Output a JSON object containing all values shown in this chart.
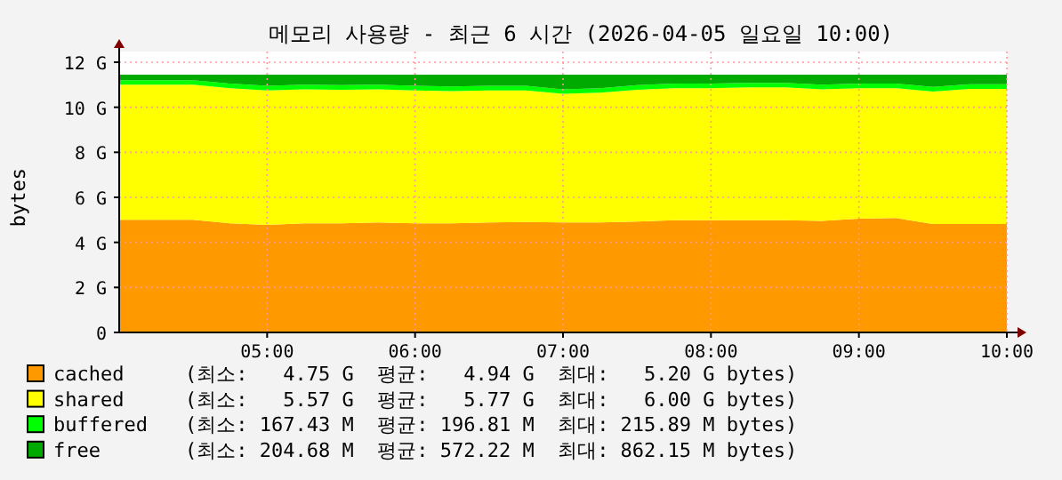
{
  "chart_data": {
    "type": "area",
    "stacked": true,
    "title": "메모리 사용량 - 최근 6 시간 (2026-04-05 일요일 10:00)",
    "ylabel": "bytes",
    "x": [
      4.0,
      4.25,
      4.5,
      4.75,
      5.0,
      5.25,
      5.5,
      5.75,
      6.0,
      6.25,
      6.5,
      6.75,
      7.0,
      7.25,
      7.5,
      7.75,
      8.0,
      8.25,
      8.5,
      8.75,
      9.0,
      9.25,
      9.5,
      9.75,
      10.0
    ],
    "xlim": [
      4,
      10
    ],
    "xticks": [
      {
        "value": 5,
        "label": "05:00"
      },
      {
        "value": 6,
        "label": "06:00"
      },
      {
        "value": 7,
        "label": "07:00"
      },
      {
        "value": 8,
        "label": "08:00"
      },
      {
        "value": 9,
        "label": "09:00"
      },
      {
        "value": 10,
        "label": "10:00"
      }
    ],
    "ylim": [
      0,
      12
    ],
    "yticks": [
      0,
      {
        "value": 2,
        "label": "2 G"
      },
      {
        "value": 4,
        "label": "4 G"
      },
      {
        "value": 6,
        "label": "6 G"
      },
      {
        "value": 8,
        "label": "8 G"
      },
      {
        "value": 10,
        "label": "10 G"
      },
      {
        "value": 12,
        "label": "12 G"
      }
    ],
    "grid": true,
    "legend": "bottom",
    "series": [
      {
        "name": "cached",
        "color": "#ff9900",
        "values": [
          5.0,
          5.0,
          5.0,
          4.85,
          4.78,
          4.85,
          4.85,
          4.88,
          4.85,
          4.85,
          4.88,
          4.9,
          4.88,
          4.88,
          4.92,
          4.98,
          4.98,
          4.98,
          4.98,
          4.95,
          5.05,
          5.08,
          4.82,
          4.82,
          4.82
        ]
      },
      {
        "name": "shared",
        "color": "#ffff00",
        "values": [
          6.0,
          6.0,
          6.0,
          6.0,
          5.97,
          5.95,
          5.93,
          5.92,
          5.9,
          5.87,
          5.87,
          5.85,
          5.72,
          5.77,
          5.86,
          5.87,
          5.87,
          5.9,
          5.9,
          5.85,
          5.8,
          5.77,
          5.88,
          6.0,
          6.0
        ]
      },
      {
        "name": "buffered",
        "color": "#00ff00",
        "values": [
          0.2,
          0.2,
          0.2,
          0.2,
          0.2,
          0.2,
          0.2,
          0.2,
          0.2,
          0.2,
          0.2,
          0.2,
          0.2,
          0.2,
          0.2,
          0.2,
          0.2,
          0.2,
          0.2,
          0.2,
          0.2,
          0.2,
          0.2,
          0.2,
          0.2
        ]
      },
      {
        "name": "free",
        "color": "#00aa00",
        "values": [
          0.25,
          0.25,
          0.25,
          0.4,
          0.5,
          0.45,
          0.47,
          0.45,
          0.5,
          0.53,
          0.5,
          0.5,
          0.65,
          0.6,
          0.47,
          0.4,
          0.4,
          0.37,
          0.37,
          0.45,
          0.4,
          0.4,
          0.55,
          0.43,
          0.43
        ]
      }
    ],
    "annotations": [
      "(최소:   4.75 G  평균:   4.94 G  최대:   5.20 G bytes)",
      "(최소:   5.57 G  평균:   5.77 G  최대:   6.00 G bytes)",
      "(최소: 167.43 M  평균: 196.81 M  최대: 215.89 M bytes)",
      "(최소: 204.68 M  평균: 572.22 M  최대: 862.15 M bytes)"
    ]
  }
}
